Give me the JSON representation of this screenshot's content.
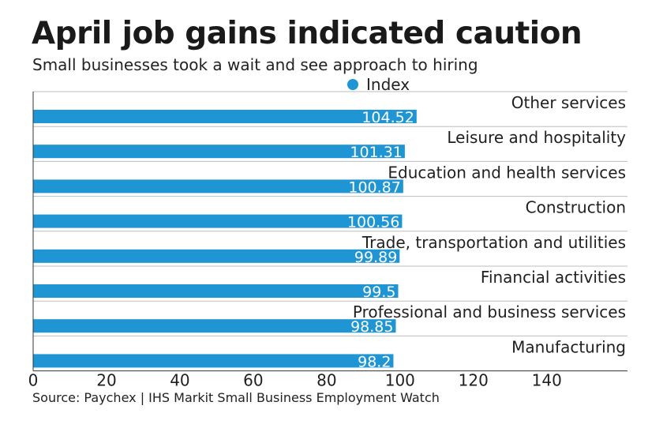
{
  "colors": {
    "bar": "#1f96d3",
    "divider": "#bdbdbd",
    "axis": "#333333"
  },
  "chart_data": {
    "type": "bar",
    "orientation": "horizontal",
    "title": "April job gains indicated caution",
    "subtitle": "Small businesses took a wait and see approach to hiring",
    "legend": [
      "Index"
    ],
    "series": [
      {
        "name": "Index",
        "values": [
          104.52,
          101.31,
          100.87,
          100.56,
          99.89,
          99.5,
          98.85,
          98.2
        ]
      }
    ],
    "categories": [
      "Other services",
      "Leisure and hospitality",
      "Education and health services",
      "Construction",
      "Trade, transportation and utilities",
      "Financial activities",
      "Professional and business services",
      "Manufacturing"
    ],
    "value_labels": [
      "104.52",
      "101.31",
      "100.87",
      "100.56",
      "99.89",
      "99.5",
      "98.85",
      "98.2"
    ],
    "xlim": [
      0,
      162
    ],
    "xticks": [
      0,
      20,
      40,
      60,
      80,
      100,
      120,
      140
    ],
    "source": "Source: Paychex | IHS Markit Small Business Employment Watch"
  }
}
